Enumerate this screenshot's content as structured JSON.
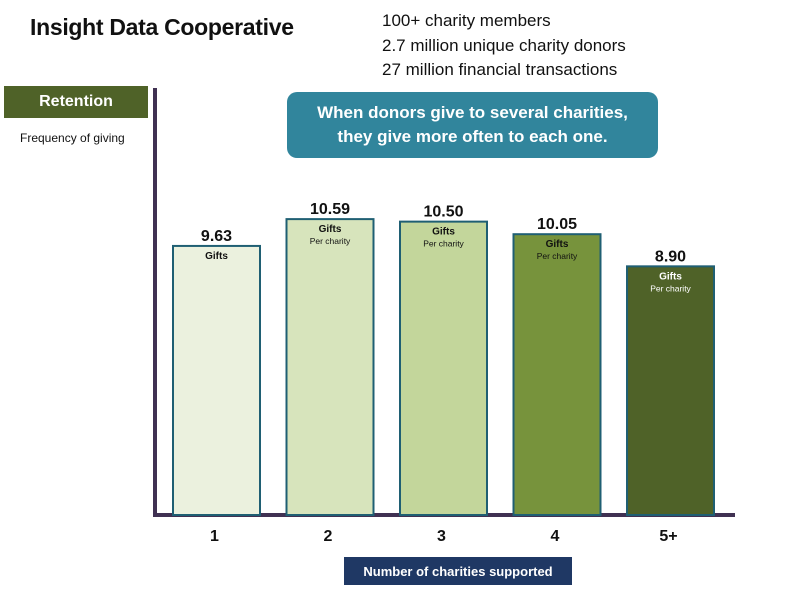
{
  "header": {
    "title": "Insight Data Cooperative",
    "stats": [
      "100+ charity members",
      "2.7 million unique charity donors",
      "27 million financial transactions"
    ]
  },
  "retention_label": "Retention",
  "subtitle": "Frequency of giving",
  "callout": {
    "line1": "When donors give to several charities,",
    "line2": "they give more often to each one."
  },
  "colors": {
    "badge": "#4f6228",
    "callout": "#31859c",
    "axis": "#403152",
    "x_title_bg": "#1f3864",
    "bar_stroke": "#1f5f73"
  },
  "chart_data": {
    "type": "bar",
    "title": "",
    "ylabel": "Frequency of giving",
    "xlabel": "Number of charities supported",
    "ylim": [
      0,
      12
    ],
    "grid": false,
    "categories": [
      "1",
      "2",
      "3",
      "4",
      "5+"
    ],
    "values": [
      9.63,
      10.59,
      10.5,
      10.05,
      8.9
    ],
    "value_labels": [
      "9.63",
      "10.59",
      "10.50",
      "10.05",
      "8.90"
    ],
    "unit_labels": [
      "Gifts",
      "Gifts",
      "Gifts",
      "Gifts",
      "Gifts"
    ],
    "sub_labels": [
      "",
      "Per charity",
      "Per charity",
      "Per charity",
      "Per charity"
    ],
    "bar_colors": [
      "#ebf1de",
      "#d7e4bc",
      "#c3d69b",
      "#77933c",
      "#4f6228"
    ],
    "label_colors": [
      "#111111",
      "#111111",
      "#111111",
      "#111111",
      "#ffffff"
    ]
  }
}
